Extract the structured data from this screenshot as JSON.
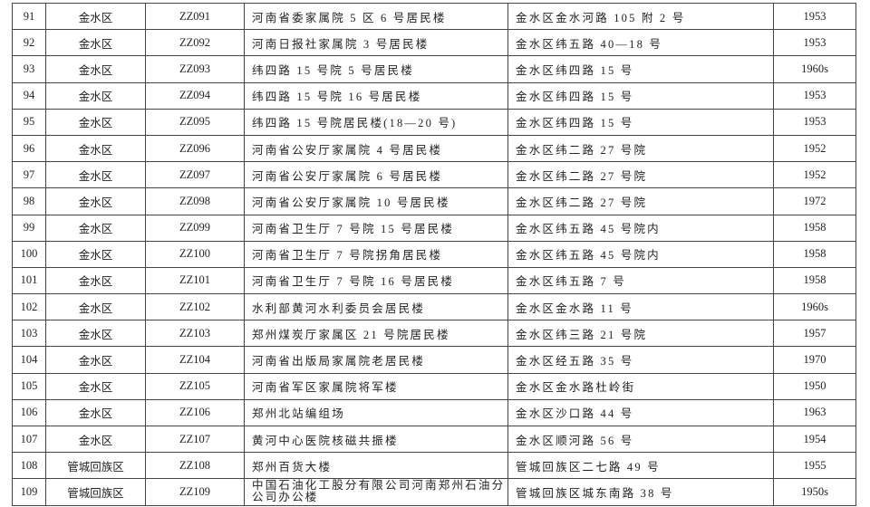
{
  "table": {
    "rows": [
      {
        "no": "91",
        "district": "金水区",
        "code": "ZZ091",
        "name": "河南省委家属院 5 区 6 号居民楼",
        "address": "金水区金水河路 105 附 2 号",
        "year": "1953"
      },
      {
        "no": "92",
        "district": "金水区",
        "code": "ZZ092",
        "name": "河南日报社家属院 3 号居民楼",
        "address": "金水区纬五路 40—18 号",
        "year": "1953"
      },
      {
        "no": "93",
        "district": "金水区",
        "code": "ZZ093",
        "name": "纬四路 15 号院 5 号居民楼",
        "address": "金水区纬四路 15 号",
        "year": "1960s"
      },
      {
        "no": "94",
        "district": "金水区",
        "code": "ZZ094",
        "name": "纬四路 15 号院 16 号居民楼",
        "address": "金水区纬四路 15 号",
        "year": "1953"
      },
      {
        "no": "95",
        "district": "金水区",
        "code": "ZZ095",
        "name": "纬四路 15 号院居民楼(18—20 号)",
        "address": "金水区纬四路 15 号",
        "year": "1953"
      },
      {
        "no": "96",
        "district": "金水区",
        "code": "ZZ096",
        "name": "河南省公安厅家属院 4 号居民楼",
        "address": "金水区纬二路 27 号院",
        "year": "1952"
      },
      {
        "no": "97",
        "district": "金水区",
        "code": "ZZ097",
        "name": "河南省公安厅家属院 6 号居民楼",
        "address": "金水区纬二路 27 号院",
        "year": "1952"
      },
      {
        "no": "98",
        "district": "金水区",
        "code": "ZZ098",
        "name": "河南省公安厅家属院 10 号居民楼",
        "address": "金水区纬二路 27 号院",
        "year": "1972"
      },
      {
        "no": "99",
        "district": "金水区",
        "code": "ZZ099",
        "name": "河南省卫生厅 7 号院 15 号居民楼",
        "address": "金水区纬五路 45 号院内",
        "year": "1958"
      },
      {
        "no": "100",
        "district": "金水区",
        "code": "ZZ100",
        "name": "河南省卫生厅 7 号院拐角居民楼",
        "address": "金水区纬五路 45 号院内",
        "year": "1958"
      },
      {
        "no": "101",
        "district": "金水区",
        "code": "ZZ101",
        "name": "河南省卫生厅 7 号院 16 号居民楼",
        "address": "金水区纬五路 7 号",
        "year": "1958"
      },
      {
        "no": "102",
        "district": "金水区",
        "code": "ZZ102",
        "name": "水利部黄河水利委员会居民楼",
        "address": "金水区金水路 11 号",
        "year": "1960s"
      },
      {
        "no": "103",
        "district": "金水区",
        "code": "ZZ103",
        "name": "郑州煤炭厅家属区 21 号院居民楼",
        "address": "金水区纬三路 21 号院",
        "year": "1957"
      },
      {
        "no": "104",
        "district": "金水区",
        "code": "ZZ104",
        "name": "河南省出版局家属院老居民楼",
        "address": "金水区经五路 35 号",
        "year": "1970"
      },
      {
        "no": "105",
        "district": "金水区",
        "code": "ZZ105",
        "name": "河南省军区家属院将军楼",
        "address": "金水区金水路杜岭街",
        "year": "1950"
      },
      {
        "no": "106",
        "district": "金水区",
        "code": "ZZ106",
        "name": "郑州北站编组场",
        "address": "金水区沙口路 44 号",
        "year": "1963"
      },
      {
        "no": "107",
        "district": "金水区",
        "code": "ZZ107",
        "name": "黄河中心医院核磁共振楼",
        "address": "金水区顺河路 56 号",
        "year": "1954"
      },
      {
        "no": "108",
        "district": "管城回族区",
        "code": "ZZ108",
        "name": "郑州百货大楼",
        "address": "管城回族区二七路 49 号",
        "year": "1955"
      },
      {
        "no": "109",
        "district": "管城回族区",
        "code": "ZZ109",
        "name": "中国石油化工股分有限公司河南郑州石油分公司办公楼",
        "address": "管城回族区城东南路 38 号",
        "year": "1950s"
      }
    ]
  }
}
